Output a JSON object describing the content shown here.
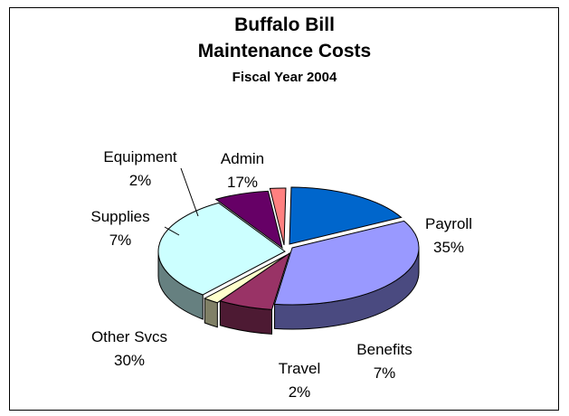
{
  "chart_data": {
    "type": "pie",
    "title": "Buffalo Bill",
    "subtitle": "Maintenance Costs",
    "subtitle2": "Fiscal Year 2004",
    "style": "3d exploded pie",
    "slices": [
      {
        "name": "Payroll",
        "value": 35,
        "label": "35%",
        "color": "#9999ff",
        "side": "#4a4a80"
      },
      {
        "name": "Benefits",
        "value": 7,
        "label": "7%",
        "color": "#993366",
        "side": "#4d1a33"
      },
      {
        "name": "Travel",
        "value": 2,
        "label": "2%",
        "color": "#ffffcc",
        "side": "#808066"
      },
      {
        "name": "Other Svcs",
        "value": 30,
        "label": "30%",
        "color": "#ccffff",
        "side": "#668080"
      },
      {
        "name": "Supplies",
        "value": 7,
        "label": "7%",
        "color": "#660066",
        "side": "#330033"
      },
      {
        "name": "Equipment",
        "value": 2,
        "label": "2%",
        "color": "#ff8080",
        "side": "#804040"
      },
      {
        "name": "Admin",
        "value": 17,
        "label": "17%",
        "color": "#0066cc",
        "side": "#003366"
      }
    ]
  }
}
